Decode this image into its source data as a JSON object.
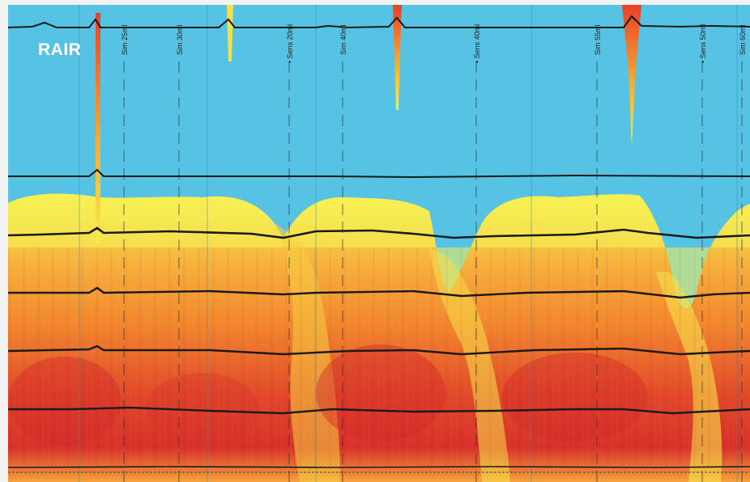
{
  "label": "RAIR",
  "markers": [
    {
      "text": "Sim 25ml"
    },
    {
      "text": "Sim 30ml"
    },
    {
      "text": "• Sens 20ml"
    },
    {
      "text": "Sim 40ml"
    },
    {
      "text": "• Sens 40ml"
    },
    {
      "text": "Sim 55ml"
    },
    {
      "text": "• Sens 50ml"
    },
    {
      "text": "Sim 60ml"
    }
  ],
  "colors": {
    "background": "#56c3e5",
    "high_pressure": "#d8242a",
    "mid_pressure": "#f6a23a",
    "low_pressure": "#f7ee4a",
    "trace": "#1a1a1a"
  }
}
